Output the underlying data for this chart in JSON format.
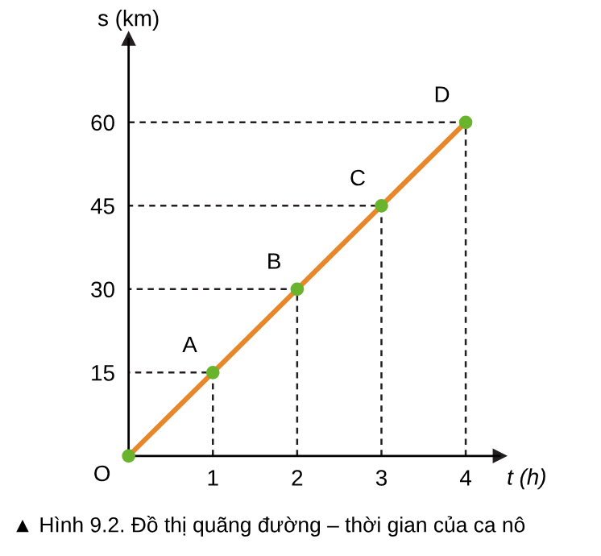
{
  "chart_data": {
    "type": "line",
    "xlabel": "t (h)",
    "ylabel": "s (km)",
    "x": [
      0,
      1,
      2,
      3,
      4
    ],
    "series": [
      {
        "color": "#e8862a",
        "values": [
          0,
          15,
          30,
          45,
          60
        ],
        "marker": "circle",
        "line_style": "solid"
      },
      {
        "color": "#231f20",
        "x": [
          1,
          1,
          0
        ],
        "values": [
          0,
          15,
          15
        ],
        "line_style": "dashed"
      },
      {
        "color": "#231f20",
        "x": [
          2,
          2,
          0
        ],
        "values": [
          0,
          30,
          30
        ],
        "line_style": "dashed"
      },
      {
        "color": "#231f20",
        "x": [
          3,
          3,
          0
        ],
        "values": [
          0,
          45,
          45
        ],
        "line_style": "dashed"
      },
      {
        "color": "#231f20",
        "x": [
          4,
          4,
          0
        ],
        "values": [
          0,
          60,
          60
        ],
        "line_style": "dashed"
      }
    ],
    "xlim": [
      0,
      4.4
    ],
    "ylim": [
      0,
      75
    ],
    "xticks": [
      1,
      2,
      3,
      4
    ],
    "yticks": [
      15,
      30,
      45,
      60
    ],
    "grid": false,
    "legend": false,
    "annotations": [
      {
        "text": "O",
        "x": 0,
        "y": 0
      },
      {
        "text": "A",
        "x": 1,
        "y": 15
      },
      {
        "text": "B",
        "x": 2,
        "y": 30
      },
      {
        "text": "C",
        "x": 3,
        "y": 45
      },
      {
        "text": "D",
        "x": 4,
        "y": 60
      },
      "▲ Hình 9.2. Đồ thị quãng đường – thời gian của ca nô"
    ]
  }
}
